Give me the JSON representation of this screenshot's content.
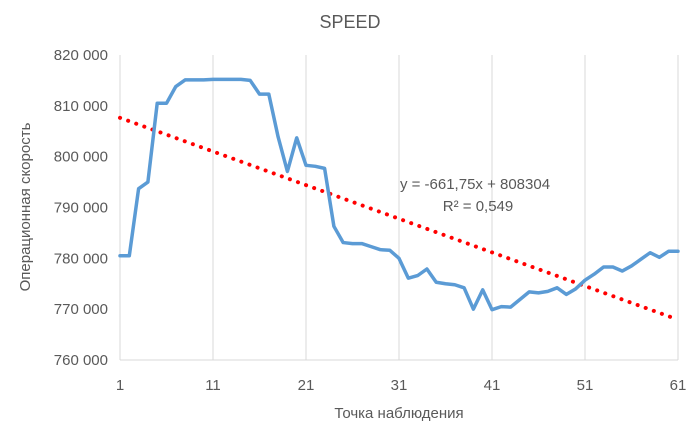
{
  "chart_data": {
    "type": "line",
    "title": "SPEED",
    "xlabel": "Точка наблюдения",
    "ylabel": "Операционная скорость",
    "xlim": [
      1,
      61
    ],
    "ylim": [
      760000,
      820000
    ],
    "x_ticks": [
      1,
      11,
      21,
      31,
      41,
      51,
      61
    ],
    "x_tick_labels": [
      "1",
      "11",
      "21",
      "31",
      "41",
      "51",
      "61"
    ],
    "y_ticks": [
      760000,
      770000,
      780000,
      790000,
      800000,
      810000,
      820000
    ],
    "y_tick_labels": [
      "760 000",
      "770 000",
      "780 000",
      "790 000",
      "800 000",
      "810 000",
      "820 000"
    ],
    "grid": "vertical",
    "legend": "none",
    "series": [
      {
        "color": "#5b9bd5",
        "x": [
          1,
          2,
          3,
          4,
          5,
          6,
          7,
          8,
          9,
          10,
          11,
          12,
          13,
          14,
          15,
          16,
          17,
          18,
          19,
          20,
          21,
          22,
          23,
          24,
          25,
          26,
          27,
          28,
          29,
          30,
          31,
          32,
          33,
          34,
          35,
          36,
          37,
          38,
          39,
          40,
          41,
          42,
          43,
          44,
          45,
          46,
          47,
          48,
          49,
          50,
          51,
          52,
          53,
          54,
          55,
          56,
          57,
          58,
          59,
          60,
          61
        ],
        "values": [
          780500,
          780500,
          793700,
          795000,
          810500,
          810500,
          813800,
          815100,
          815100,
          815100,
          815200,
          815200,
          815200,
          815200,
          815000,
          812300,
          812300,
          803900,
          797100,
          803700,
          798300,
          798100,
          797700,
          786300,
          783100,
          782900,
          782900,
          782300,
          781700,
          781600,
          780000,
          776100,
          776600,
          777900,
          775300,
          775000,
          774800,
          774200,
          770000,
          773800,
          769900,
          770500,
          770400,
          771900,
          773400,
          773200,
          773500,
          774200,
          772900,
          774000,
          775700,
          776900,
          778300,
          778300,
          777500,
          778500,
          779800,
          781100,
          780200,
          781400,
          781400
        ]
      }
    ],
    "trendline": {
      "type": "linear",
      "color": "#ff0000",
      "style": "dotted",
      "x_range": [
        1,
        61
      ],
      "slope": -661.75,
      "intercept": 808304
    },
    "annotations": {
      "equation": "y = -661,75x + 808304",
      "r_squared": "R² = 0,549"
    }
  }
}
